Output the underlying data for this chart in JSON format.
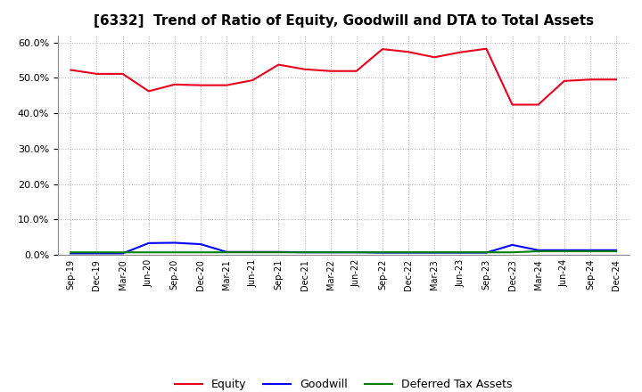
{
  "title": "[6332]  Trend of Ratio of Equity, Goodwill and DTA to Total Assets",
  "x_labels": [
    "Sep-19",
    "Dec-19",
    "Mar-20",
    "Jun-20",
    "Sep-20",
    "Dec-20",
    "Mar-21",
    "Jun-21",
    "Sep-21",
    "Dec-21",
    "Mar-22",
    "Jun-22",
    "Sep-22",
    "Dec-22",
    "Mar-23",
    "Jun-23",
    "Sep-23",
    "Dec-23",
    "Mar-24",
    "Jun-24",
    "Sep-24",
    "Dec-24"
  ],
  "equity": [
    0.522,
    0.511,
    0.511,
    0.462,
    0.481,
    0.479,
    0.479,
    0.493,
    0.537,
    0.524,
    0.519,
    0.519,
    0.581,
    0.573,
    0.558,
    0.572,
    0.582,
    0.424,
    0.424,
    0.491,
    0.495,
    0.495
  ],
  "goodwill": [
    0.004,
    0.004,
    0.004,
    0.033,
    0.034,
    0.03,
    0.008,
    0.008,
    0.008,
    0.007,
    0.007,
    0.007,
    0.006,
    0.006,
    0.006,
    0.006,
    0.006,
    0.028,
    0.013,
    0.013,
    0.013,
    0.013
  ],
  "dta": [
    0.007,
    0.007,
    0.007,
    0.007,
    0.007,
    0.007,
    0.007,
    0.007,
    0.007,
    0.007,
    0.007,
    0.007,
    0.007,
    0.007,
    0.007,
    0.007,
    0.007,
    0.007,
    0.01,
    0.01,
    0.01,
    0.01
  ],
  "equity_color": "#e8001c",
  "goodwill_color": "#0000ff",
  "dta_color": "#008000",
  "ylim": [
    0.0,
    0.62
  ],
  "yticks": [
    0.0,
    0.1,
    0.2,
    0.3,
    0.4,
    0.5,
    0.6
  ],
  "background_color": "#ffffff",
  "grid_color": "#b0b0b0",
  "title_fontsize": 11,
  "legend_labels": [
    "Equity",
    "Goodwill",
    "Deferred Tax Assets"
  ]
}
